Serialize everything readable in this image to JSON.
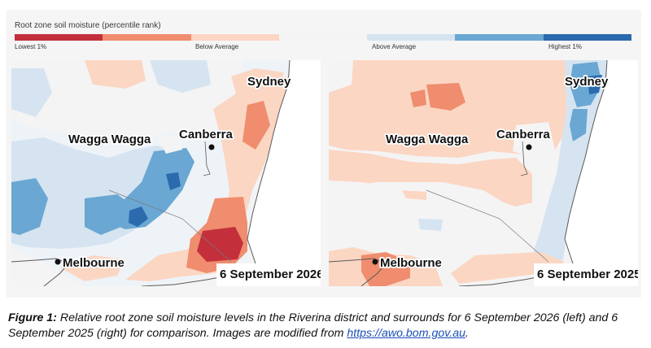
{
  "legend": {
    "title": "Root zone soil moisture (percentile rank)",
    "colors": [
      "#c3303c",
      "#ef8d6e",
      "#fbd6c3",
      "#f4f4f4",
      "#d5e4f0",
      "#6aa7d3",
      "#2a6aad"
    ],
    "labels": {
      "lowest": "Lowest 1%",
      "below": "Below Average",
      "above": "Above Average",
      "highest": "Highest 1%"
    }
  },
  "maps": [
    {
      "date": "6 September 2026",
      "cities": {
        "sydney": "Sydney",
        "wagga": "Wagga Wagga",
        "canberra": "Canberra",
        "melbourne": "Melbourne"
      }
    },
    {
      "date": "6 September 2025",
      "cities": {
        "sydney": "Sydney",
        "wagga": "Wagga Wagga",
        "canberra": "Canberra",
        "melbourne": "Melbourne"
      }
    }
  ],
  "caption": {
    "figure_label": "Figure 1:",
    "text": " Relative root zone soil moisture levels in the Riverina district and surrounds for 6 September 2026 (left) and 6 September 2025 (right) for comparison. Images are modified from ",
    "link": "https://awo.bom.gov.au",
    "end": "."
  }
}
